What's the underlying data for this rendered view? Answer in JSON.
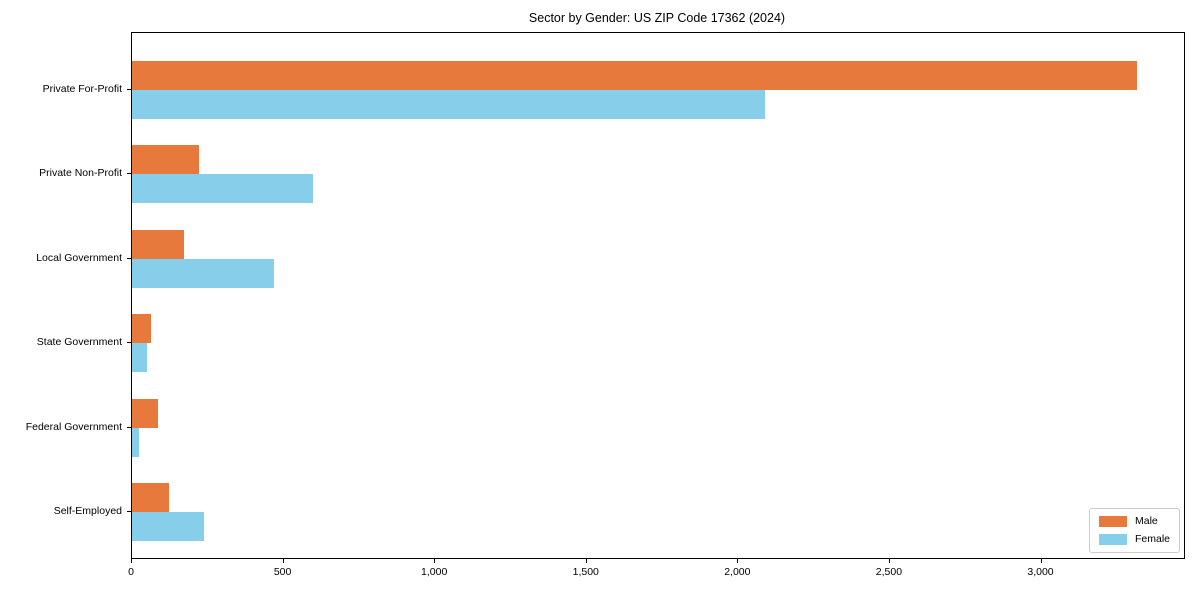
{
  "title": "Sector by Gender: US ZIP Code 17362 (2024)",
  "chart_data": {
    "type": "bar",
    "orientation": "horizontal",
    "title": "Sector by Gender: US ZIP Code 17362 (2024)",
    "categories": [
      "Private For-Profit",
      "Private Non-Profit",
      "Local Government",
      "State Government",
      "Federal Government",
      "Self-Employed"
    ],
    "series": [
      {
        "name": "Male",
        "color": "#e8793d",
        "values": [
          3314,
          221,
          172,
          63,
          86,
          122
        ]
      },
      {
        "name": "Female",
        "color": "#87ceeb",
        "values": [
          2089,
          597,
          469,
          50,
          22,
          238
        ]
      }
    ],
    "xlabel": "",
    "ylabel": "",
    "xlim": [
      0,
      3470
    ],
    "xticks": [
      0,
      500,
      1000,
      1500,
      2000,
      2500,
      3000
    ],
    "xtick_labels": [
      "0",
      "500",
      "1,000",
      "1,500",
      "2,000",
      "2,500",
      "3,000"
    ],
    "legend_position": "lower right",
    "grid": false,
    "category_order": "top-to-bottom"
  }
}
